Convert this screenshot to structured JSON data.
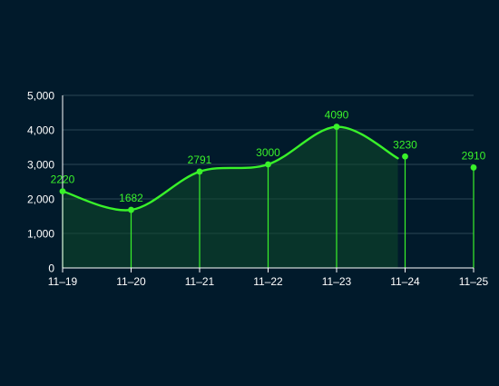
{
  "chart_data": {
    "type": "area",
    "title": "",
    "xlabel": "",
    "ylabel": "",
    "categories": [
      "11–19",
      "11–20",
      "11–21",
      "11–22",
      "11–23",
      "11–24",
      "11–25"
    ],
    "y_ticks": [
      "0",
      "1,000",
      "2,000",
      "3,000",
      "4,000",
      "5,000"
    ],
    "ylim": [
      0,
      5000
    ],
    "grid": true,
    "legend": "none",
    "series": [
      {
        "values": [
          2220,
          1682,
          2791,
          3000,
          4090,
          3230,
          2910
        ],
        "data_labels": [
          "2220",
          "1682",
          "2791",
          "3000",
          "4090",
          "3230",
          "2910"
        ],
        "color": "#39f22a",
        "fill_color": "#0f4a2a"
      }
    ],
    "colors": {
      "background": "#011a2b",
      "axis_text": "#ffffff",
      "axis_line": "#ffffff",
      "grid": "#2c4656",
      "accent": "#39f22a"
    }
  }
}
